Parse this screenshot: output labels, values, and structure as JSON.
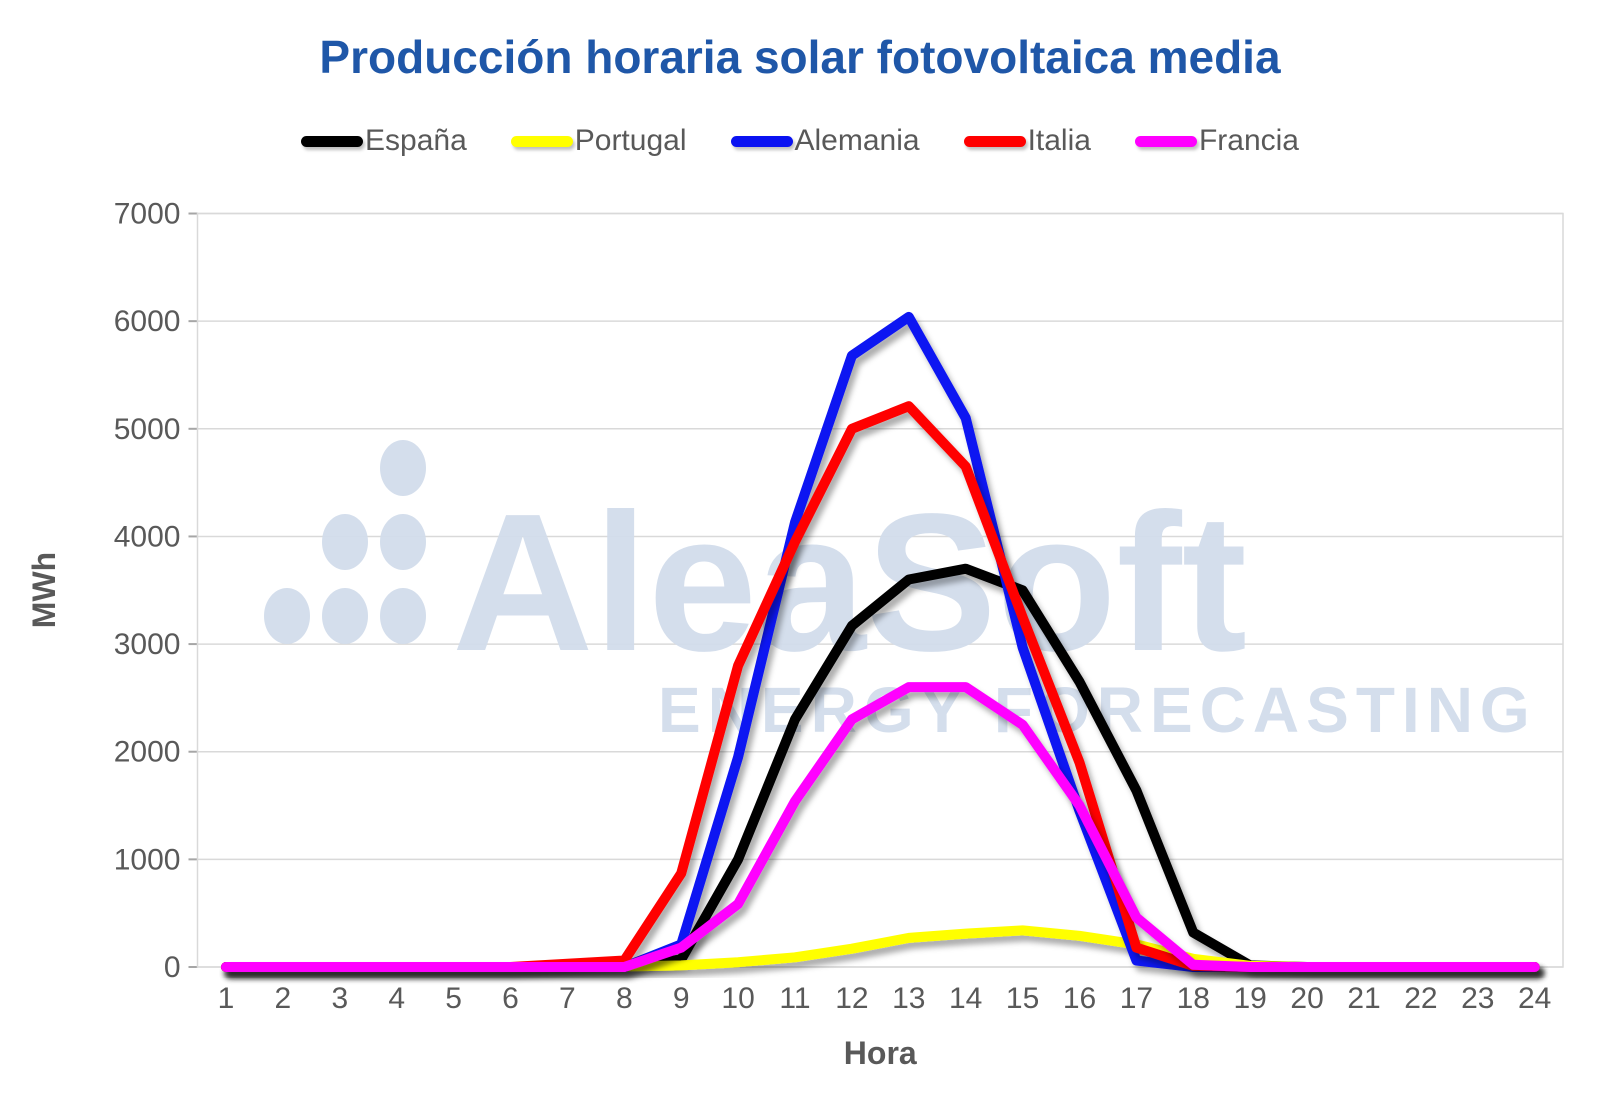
{
  "title": "Producción horaria solar fotovoltaica media",
  "title_color": "#1F57A8",
  "watermark": {
    "brand": "AleaSoft",
    "tagline": "ENERGY FORECASTING",
    "color": "#D2DCEB"
  },
  "axes": {
    "x_title": "Hora",
    "y_title": "MWh",
    "text_color": "#595959",
    "grid_color": "#D9D9D9"
  },
  "chart_data": {
    "type": "line",
    "title": "Producción horaria solar fotovoltaica media",
    "xlabel": "Hora",
    "ylabel": "MWh",
    "ylim": [
      0,
      7000
    ],
    "y_ticks": [
      0,
      1000,
      2000,
      3000,
      4000,
      5000,
      6000,
      7000
    ],
    "grid": "horizontal",
    "legend_position": "top",
    "categories": [
      1,
      2,
      3,
      4,
      5,
      6,
      7,
      8,
      9,
      10,
      11,
      12,
      13,
      14,
      15,
      16,
      17,
      18,
      19,
      20,
      21,
      22,
      23,
      24
    ],
    "series": [
      {
        "name": "España",
        "color": "#000000",
        "values": [
          0,
          0,
          0,
          0,
          0,
          0,
          0,
          0,
          70,
          1000,
          2300,
          3170,
          3600,
          3700,
          3500,
          2650,
          1640,
          320,
          15,
          0,
          0,
          0,
          0,
          0
        ]
      },
      {
        "name": "Portugal",
        "color": "#FFFF00",
        "values": [
          0,
          0,
          0,
          0,
          0,
          0,
          0,
          5,
          15,
          45,
          90,
          170,
          270,
          310,
          340,
          290,
          210,
          75,
          10,
          0,
          0,
          0,
          0,
          0
        ]
      },
      {
        "name": "Alemania",
        "color": "#0A12F2",
        "values": [
          0,
          0,
          0,
          0,
          0,
          0,
          0,
          0,
          210,
          1950,
          4130,
          5680,
          6040,
          5100,
          2970,
          1450,
          60,
          0,
          0,
          0,
          0,
          0,
          0,
          0
        ]
      },
      {
        "name": "Italia",
        "color": "#FF0000",
        "values": [
          0,
          0,
          0,
          0,
          0,
          0,
          30,
          60,
          870,
          2800,
          3950,
          5000,
          5210,
          4650,
          3250,
          1900,
          180,
          10,
          0,
          0,
          0,
          0,
          0,
          0
        ]
      },
      {
        "name": "Francia",
        "color": "#FF00FF",
        "values": [
          0,
          0,
          0,
          0,
          0,
          0,
          0,
          0,
          180,
          585,
          1540,
          2300,
          2600,
          2600,
          2250,
          1500,
          460,
          20,
          0,
          0,
          0,
          0,
          0,
          0
        ]
      }
    ]
  }
}
